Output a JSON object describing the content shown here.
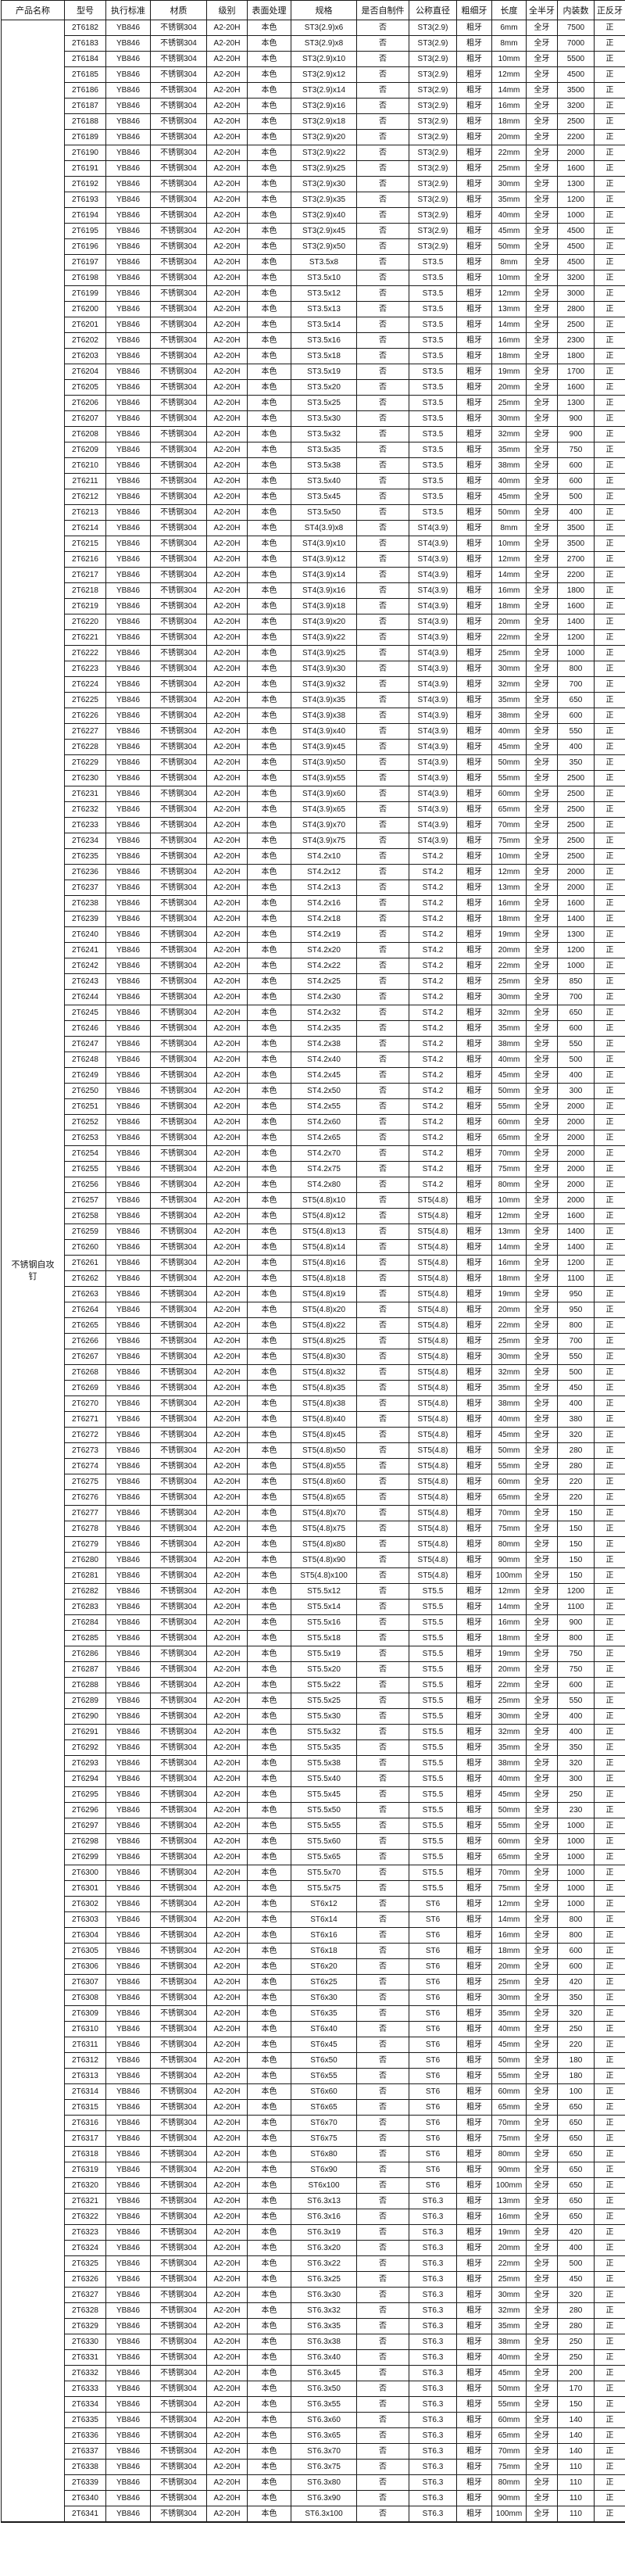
{
  "page": {
    "background_color": "#ffffff",
    "border_color": "#1a1a1a",
    "text_color": "#141414"
  },
  "table": {
    "columns": [
      {
        "key": "product_name",
        "label": "产品名称"
      },
      {
        "key": "model",
        "label": "型号"
      },
      {
        "key": "standard",
        "label": "执行标准"
      },
      {
        "key": "material",
        "label": "材质"
      },
      {
        "key": "grade",
        "label": "级别"
      },
      {
        "key": "surface",
        "label": "表面处理"
      },
      {
        "key": "spec",
        "label": "规格"
      },
      {
        "key": "self_made",
        "label": "是否自制件"
      },
      {
        "key": "nominal_diameter",
        "label": "公称直径"
      },
      {
        "key": "thread_pitch",
        "label": "粗细牙"
      },
      {
        "key": "length",
        "label": "长度"
      },
      {
        "key": "thread_coverage",
        "label": "全半牙"
      },
      {
        "key": "pack_qty",
        "label": "内装数"
      },
      {
        "key": "thread_direction",
        "label": "正反牙"
      }
    ],
    "merged_product_name": "不锈钢自攻钉",
    "common": {
      "standard": "YB846",
      "material": "不锈钢304",
      "grade": "A2-20H",
      "surface": "本色",
      "self_made": "否",
      "thread_pitch": "粗牙",
      "thread_coverage": "全牙",
      "thread_direction": "正"
    },
    "row_fields": [
      "model",
      "spec",
      "nominal_diameter",
      "length",
      "pack_qty"
    ],
    "rows": [
      [
        "2T6182",
        "ST3(2.9)x6",
        "ST3(2.9)",
        "6mm",
        "7500"
      ],
      [
        "2T6183",
        "ST3(2.9)x8",
        "ST3(2.9)",
        "8mm",
        "7000"
      ],
      [
        "2T6184",
        "ST3(2.9)x10",
        "ST3(2.9)",
        "10mm",
        "5500"
      ],
      [
        "2T6185",
        "ST3(2.9)x12",
        "ST3(2.9)",
        "12mm",
        "4500"
      ],
      [
        "2T6186",
        "ST3(2.9)x14",
        "ST3(2.9)",
        "14mm",
        "3500"
      ],
      [
        "2T6187",
        "ST3(2.9)x16",
        "ST3(2.9)",
        "16mm",
        "3200"
      ],
      [
        "2T6188",
        "ST3(2.9)x18",
        "ST3(2.9)",
        "18mm",
        "2500"
      ],
      [
        "2T6189",
        "ST3(2.9)x20",
        "ST3(2.9)",
        "20mm",
        "2200"
      ],
      [
        "2T6190",
        "ST3(2.9)x22",
        "ST3(2.9)",
        "22mm",
        "2000"
      ],
      [
        "2T6191",
        "ST3(2.9)x25",
        "ST3(2.9)",
        "25mm",
        "1600"
      ],
      [
        "2T6192",
        "ST3(2.9)x30",
        "ST3(2.9)",
        "30mm",
        "1300"
      ],
      [
        "2T6193",
        "ST3(2.9)x35",
        "ST3(2.9)",
        "35mm",
        "1200"
      ],
      [
        "2T6194",
        "ST3(2.9)x40",
        "ST3(2.9)",
        "40mm",
        "1000"
      ],
      [
        "2T6195",
        "ST3(2.9)x45",
        "ST3(2.9)",
        "45mm",
        "4500"
      ],
      [
        "2T6196",
        "ST3(2.9)x50",
        "ST3(2.9)",
        "50mm",
        "4500"
      ],
      [
        "2T6197",
        "ST3.5x8",
        "ST3.5",
        "8mm",
        "4500"
      ],
      [
        "2T6198",
        "ST3.5x10",
        "ST3.5",
        "10mm",
        "3200"
      ],
      [
        "2T6199",
        "ST3.5x12",
        "ST3.5",
        "12mm",
        "3000"
      ],
      [
        "2T6200",
        "ST3.5x13",
        "ST3.5",
        "13mm",
        "2800"
      ],
      [
        "2T6201",
        "ST3.5x14",
        "ST3.5",
        "14mm",
        "2500"
      ],
      [
        "2T6202",
        "ST3.5x16",
        "ST3.5",
        "16mm",
        "2300"
      ],
      [
        "2T6203",
        "ST3.5x18",
        "ST3.5",
        "18mm",
        "1800"
      ],
      [
        "2T6204",
        "ST3.5x19",
        "ST3.5",
        "19mm",
        "1700"
      ],
      [
        "2T6205",
        "ST3.5x20",
        "ST3.5",
        "20mm",
        "1600"
      ],
      [
        "2T6206",
        "ST3.5x25",
        "ST3.5",
        "25mm",
        "1300"
      ],
      [
        "2T6207",
        "ST3.5x30",
        "ST3.5",
        "30mm",
        "900"
      ],
      [
        "2T6208",
        "ST3.5x32",
        "ST3.5",
        "32mm",
        "900"
      ],
      [
        "2T6209",
        "ST3.5x35",
        "ST3.5",
        "35mm",
        "750"
      ],
      [
        "2T6210",
        "ST3.5x38",
        "ST3.5",
        "38mm",
        "600"
      ],
      [
        "2T6211",
        "ST3.5x40",
        "ST3.5",
        "40mm",
        "600"
      ],
      [
        "2T6212",
        "ST3.5x45",
        "ST3.5",
        "45mm",
        "500"
      ],
      [
        "2T6213",
        "ST3.5x50",
        "ST3.5",
        "50mm",
        "400"
      ],
      [
        "2T6214",
        "ST4(3.9)x8",
        "ST4(3.9)",
        "8mm",
        "3500"
      ],
      [
        "2T6215",
        "ST4(3.9)x10",
        "ST4(3.9)",
        "10mm",
        "3500"
      ],
      [
        "2T6216",
        "ST4(3.9)x12",
        "ST4(3.9)",
        "12mm",
        "2700"
      ],
      [
        "2T6217",
        "ST4(3.9)x14",
        "ST4(3.9)",
        "14mm",
        "2200"
      ],
      [
        "2T6218",
        "ST4(3.9)x16",
        "ST4(3.9)",
        "16mm",
        "1800"
      ],
      [
        "2T6219",
        "ST4(3.9)x18",
        "ST4(3.9)",
        "18mm",
        "1600"
      ],
      [
        "2T6220",
        "ST4(3.9)x20",
        "ST4(3.9)",
        "20mm",
        "1400"
      ],
      [
        "2T6221",
        "ST4(3.9)x22",
        "ST4(3.9)",
        "22mm",
        "1200"
      ],
      [
        "2T6222",
        "ST4(3.9)x25",
        "ST4(3.9)",
        "25mm",
        "1000"
      ],
      [
        "2T6223",
        "ST4(3.9)x30",
        "ST4(3.9)",
        "30mm",
        "800"
      ],
      [
        "2T6224",
        "ST4(3.9)x32",
        "ST4(3.9)",
        "32mm",
        "700"
      ],
      [
        "2T6225",
        "ST4(3.9)x35",
        "ST4(3.9)",
        "35mm",
        "650"
      ],
      [
        "2T6226",
        "ST4(3.9)x38",
        "ST4(3.9)",
        "38mm",
        "600"
      ],
      [
        "2T6227",
        "ST4(3.9)x40",
        "ST4(3.9)",
        "40mm",
        "550"
      ],
      [
        "2T6228",
        "ST4(3.9)x45",
        "ST4(3.9)",
        "45mm",
        "400"
      ],
      [
        "2T6229",
        "ST4(3.9)x50",
        "ST4(3.9)",
        "50mm",
        "350"
      ],
      [
        "2T6230",
        "ST4(3.9)x55",
        "ST4(3.9)",
        "55mm",
        "2500"
      ],
      [
        "2T6231",
        "ST4(3.9)x60",
        "ST4(3.9)",
        "60mm",
        "2500"
      ],
      [
        "2T6232",
        "ST4(3.9)x65",
        "ST4(3.9)",
        "65mm",
        "2500"
      ],
      [
        "2T6233",
        "ST4(3.9)x70",
        "ST4(3.9)",
        "70mm",
        "2500"
      ],
      [
        "2T6234",
        "ST4(3.9)x75",
        "ST4(3.9)",
        "75mm",
        "2500"
      ],
      [
        "2T6235",
        "ST4.2x10",
        "ST4.2",
        "10mm",
        "2500"
      ],
      [
        "2T6236",
        "ST4.2x12",
        "ST4.2",
        "12mm",
        "2000"
      ],
      [
        "2T6237",
        "ST4.2x13",
        "ST4.2",
        "13mm",
        "2000"
      ],
      [
        "2T6238",
        "ST4.2x16",
        "ST4.2",
        "16mm",
        "1600"
      ],
      [
        "2T6239",
        "ST4.2x18",
        "ST4.2",
        "18mm",
        "1400"
      ],
      [
        "2T6240",
        "ST4.2x19",
        "ST4.2",
        "19mm",
        "1300"
      ],
      [
        "2T6241",
        "ST4.2x20",
        "ST4.2",
        "20mm",
        "1200"
      ],
      [
        "2T6242",
        "ST4.2x22",
        "ST4.2",
        "22mm",
        "1000"
      ],
      [
        "2T6243",
        "ST4.2x25",
        "ST4.2",
        "25mm",
        "850"
      ],
      [
        "2T6244",
        "ST4.2x30",
        "ST4.2",
        "30mm",
        "700"
      ],
      [
        "2T6245",
        "ST4.2x32",
        "ST4.2",
        "32mm",
        "650"
      ],
      [
        "2T6246",
        "ST4.2x35",
        "ST4.2",
        "35mm",
        "600"
      ],
      [
        "2T6247",
        "ST4.2x38",
        "ST4.2",
        "38mm",
        "550"
      ],
      [
        "2T6248",
        "ST4.2x40",
        "ST4.2",
        "40mm",
        "500"
      ],
      [
        "2T6249",
        "ST4.2x45",
        "ST4.2",
        "45mm",
        "400"
      ],
      [
        "2T6250",
        "ST4.2x50",
        "ST4.2",
        "50mm",
        "300"
      ],
      [
        "2T6251",
        "ST4.2x55",
        "ST4.2",
        "55mm",
        "2000"
      ],
      [
        "2T6252",
        "ST4.2x60",
        "ST4.2",
        "60mm",
        "2000"
      ],
      [
        "2T6253",
        "ST4.2x65",
        "ST4.2",
        "65mm",
        "2000"
      ],
      [
        "2T6254",
        "ST4.2x70",
        "ST4.2",
        "70mm",
        "2000"
      ],
      [
        "2T6255",
        "ST4.2x75",
        "ST4.2",
        "75mm",
        "2000"
      ],
      [
        "2T6256",
        "ST4.2x80",
        "ST4.2",
        "80mm",
        "2000"
      ],
      [
        "2T6257",
        "ST5(4.8)x10",
        "ST5(4.8)",
        "10mm",
        "2000"
      ],
      [
        "2T6258",
        "ST5(4.8)x12",
        "ST5(4.8)",
        "12mm",
        "1600"
      ],
      [
        "2T6259",
        "ST5(4.8)x13",
        "ST5(4.8)",
        "13mm",
        "1400"
      ],
      [
        "2T6260",
        "ST5(4.8)x14",
        "ST5(4.8)",
        "14mm",
        "1400"
      ],
      [
        "2T6261",
        "ST5(4.8)x16",
        "ST5(4.8)",
        "16mm",
        "1200"
      ],
      [
        "2T6262",
        "ST5(4.8)x18",
        "ST5(4.8)",
        "18mm",
        "1100"
      ],
      [
        "2T6263",
        "ST5(4.8)x19",
        "ST5(4.8)",
        "19mm",
        "950"
      ],
      [
        "2T6264",
        "ST5(4.8)x20",
        "ST5(4.8)",
        "20mm",
        "950"
      ],
      [
        "2T6265",
        "ST5(4.8)x22",
        "ST5(4.8)",
        "22mm",
        "800"
      ],
      [
        "2T6266",
        "ST5(4.8)x25",
        "ST5(4.8)",
        "25mm",
        "700"
      ],
      [
        "2T6267",
        "ST5(4.8)x30",
        "ST5(4.8)",
        "30mm",
        "550"
      ],
      [
        "2T6268",
        "ST5(4.8)x32",
        "ST5(4.8)",
        "32mm",
        "500"
      ],
      [
        "2T6269",
        "ST5(4.8)x35",
        "ST5(4.8)",
        "35mm",
        "450"
      ],
      [
        "2T6270",
        "ST5(4.8)x38",
        "ST5(4.8)",
        "38mm",
        "400"
      ],
      [
        "2T6271",
        "ST5(4.8)x40",
        "ST5(4.8)",
        "40mm",
        "380"
      ],
      [
        "2T6272",
        "ST5(4.8)x45",
        "ST5(4.8)",
        "45mm",
        "320"
      ],
      [
        "2T6273",
        "ST5(4.8)x50",
        "ST5(4.8)",
        "50mm",
        "280"
      ],
      [
        "2T6274",
        "ST5(4.8)x55",
        "ST5(4.8)",
        "55mm",
        "280"
      ],
      [
        "2T6275",
        "ST5(4.8)x60",
        "ST5(4.8)",
        "60mm",
        "220"
      ],
      [
        "2T6276",
        "ST5(4.8)x65",
        "ST5(4.8)",
        "65mm",
        "220"
      ],
      [
        "2T6277",
        "ST5(4.8)x70",
        "ST5(4.8)",
        "70mm",
        "150"
      ],
      [
        "2T6278",
        "ST5(4.8)x75",
        "ST5(4.8)",
        "75mm",
        "150"
      ],
      [
        "2T6279",
        "ST5(4.8)x80",
        "ST5(4.8)",
        "80mm",
        "150"
      ],
      [
        "2T6280",
        "ST5(4.8)x90",
        "ST5(4.8)",
        "90mm",
        "150"
      ],
      [
        "2T6281",
        "ST5(4.8)x100",
        "ST5(4.8)",
        "100mm",
        "150"
      ],
      [
        "2T6282",
        "ST5.5x12",
        "ST5.5",
        "12mm",
        "1200"
      ],
      [
        "2T6283",
        "ST5.5x14",
        "ST5.5",
        "14mm",
        "1100"
      ],
      [
        "2T6284",
        "ST5.5x16",
        "ST5.5",
        "16mm",
        "900"
      ],
      [
        "2T6285",
        "ST5.5x18",
        "ST5.5",
        "18mm",
        "800"
      ],
      [
        "2T6286",
        "ST5.5x19",
        "ST5.5",
        "19mm",
        "750"
      ],
      [
        "2T6287",
        "ST5.5x20",
        "ST5.5",
        "20mm",
        "750"
      ],
      [
        "2T6288",
        "ST5.5x22",
        "ST5.5",
        "22mm",
        "600"
      ],
      [
        "2T6289",
        "ST5.5x25",
        "ST5.5",
        "25mm",
        "550"
      ],
      [
        "2T6290",
        "ST5.5x30",
        "ST5.5",
        "30mm",
        "400"
      ],
      [
        "2T6291",
        "ST5.5x32",
        "ST5.5",
        "32mm",
        "400"
      ],
      [
        "2T6292",
        "ST5.5x35",
        "ST5.5",
        "35mm",
        "350"
      ],
      [
        "2T6293",
        "ST5.5x38",
        "ST5.5",
        "38mm",
        "320"
      ],
      [
        "2T6294",
        "ST5.5x40",
        "ST5.5",
        "40mm",
        "300"
      ],
      [
        "2T6295",
        "ST5.5x45",
        "ST5.5",
        "45mm",
        "250"
      ],
      [
        "2T6296",
        "ST5.5x50",
        "ST5.5",
        "50mm",
        "230"
      ],
      [
        "2T6297",
        "ST5.5x55",
        "ST5.5",
        "55mm",
        "1000"
      ],
      [
        "2T6298",
        "ST5.5x60",
        "ST5.5",
        "60mm",
        "1000"
      ],
      [
        "2T6299",
        "ST5.5x65",
        "ST5.5",
        "65mm",
        "1000"
      ],
      [
        "2T6300",
        "ST5.5x70",
        "ST5.5",
        "70mm",
        "1000"
      ],
      [
        "2T6301",
        "ST5.5x75",
        "ST5.5",
        "75mm",
        "1000"
      ],
      [
        "2T6302",
        "ST6x12",
        "ST6",
        "12mm",
        "1000"
      ],
      [
        "2T6303",
        "ST6x14",
        "ST6",
        "14mm",
        "800"
      ],
      [
        "2T6304",
        "ST6x16",
        "ST6",
        "16mm",
        "800"
      ],
      [
        "2T6305",
        "ST6x18",
        "ST6",
        "18mm",
        "600"
      ],
      [
        "2T6306",
        "ST6x20",
        "ST6",
        "20mm",
        "600"
      ],
      [
        "2T6307",
        "ST6x25",
        "ST6",
        "25mm",
        "420"
      ],
      [
        "2T6308",
        "ST6x30",
        "ST6",
        "30mm",
        "350"
      ],
      [
        "2T6309",
        "ST6x35",
        "ST6",
        "35mm",
        "320"
      ],
      [
        "2T6310",
        "ST6x40",
        "ST6",
        "40mm",
        "250"
      ],
      [
        "2T6311",
        "ST6x45",
        "ST6",
        "45mm",
        "220"
      ],
      [
        "2T6312",
        "ST6x50",
        "ST6",
        "50mm",
        "180"
      ],
      [
        "2T6313",
        "ST6x55",
        "ST6",
        "55mm",
        "180"
      ],
      [
        "2T6314",
        "ST6x60",
        "ST6",
        "60mm",
        "100"
      ],
      [
        "2T6315",
        "ST6x65",
        "ST6",
        "65mm",
        "650"
      ],
      [
        "2T6316",
        "ST6x70",
        "ST6",
        "70mm",
        "650"
      ],
      [
        "2T6317",
        "ST6x75",
        "ST6",
        "75mm",
        "650"
      ],
      [
        "2T6318",
        "ST6x80",
        "ST6",
        "80mm",
        "650"
      ],
      [
        "2T6319",
        "ST6x90",
        "ST6",
        "90mm",
        "650"
      ],
      [
        "2T6320",
        "ST6x100",
        "ST6",
        "100mm",
        "650"
      ],
      [
        "2T6321",
        "ST6.3x13",
        "ST6.3",
        "13mm",
        "650"
      ],
      [
        "2T6322",
        "ST6.3x16",
        "ST6.3",
        "16mm",
        "650"
      ],
      [
        "2T6323",
        "ST6.3x19",
        "ST6.3",
        "19mm",
        "420"
      ],
      [
        "2T6324",
        "ST6.3x20",
        "ST6.3",
        "20mm",
        "400"
      ],
      [
        "2T6325",
        "ST6.3x22",
        "ST6.3",
        "22mm",
        "500"
      ],
      [
        "2T6326",
        "ST6.3x25",
        "ST6.3",
        "25mm",
        "450"
      ],
      [
        "2T6327",
        "ST6.3x30",
        "ST6.3",
        "30mm",
        "320"
      ],
      [
        "2T6328",
        "ST6.3x32",
        "ST6.3",
        "32mm",
        "280"
      ],
      [
        "2T6329",
        "ST6.3x35",
        "ST6.3",
        "35mm",
        "280"
      ],
      [
        "2T6330",
        "ST6.3x38",
        "ST6.3",
        "38mm",
        "250"
      ],
      [
        "2T6331",
        "ST6.3x40",
        "ST6.3",
        "40mm",
        "250"
      ],
      [
        "2T6332",
        "ST6.3x45",
        "ST6.3",
        "45mm",
        "200"
      ],
      [
        "2T6333",
        "ST6.3x50",
        "ST6.3",
        "50mm",
        "170"
      ],
      [
        "2T6334",
        "ST6.3x55",
        "ST6.3",
        "55mm",
        "150"
      ],
      [
        "2T6335",
        "ST6.3x60",
        "ST6.3",
        "60mm",
        "140"
      ],
      [
        "2T6336",
        "ST6.3x65",
        "ST6.3",
        "65mm",
        "140"
      ],
      [
        "2T6337",
        "ST6.3x70",
        "ST6.3",
        "70mm",
        "140"
      ],
      [
        "2T6338",
        "ST6.3x75",
        "ST6.3",
        "75mm",
        "110"
      ],
      [
        "2T6339",
        "ST6.3x80",
        "ST6.3",
        "80mm",
        "110"
      ],
      [
        "2T6340",
        "ST6.3x90",
        "ST6.3",
        "90mm",
        "110"
      ],
      [
        "2T6341",
        "ST6.3x100",
        "ST6.3",
        "100mm",
        "110"
      ]
    ]
  }
}
